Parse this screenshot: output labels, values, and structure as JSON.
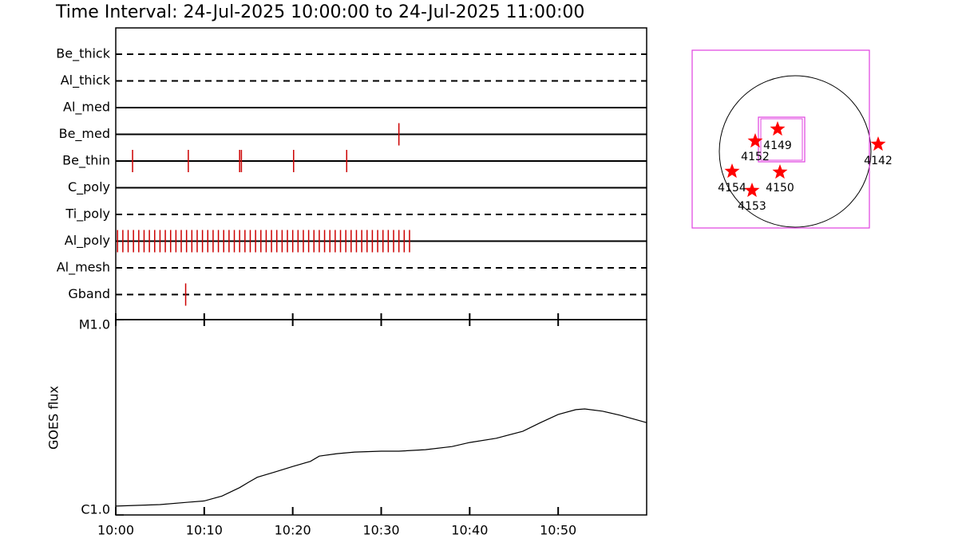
{
  "chart_data": [
    {
      "type": "timeline",
      "title": "Time Interval: 24-Jul-2025 10:00:00 to 24-Jul-2025 11:00:00",
      "categories": [
        "Be_thick",
        "Al_thick",
        "Al_med",
        "Be_med",
        "Be_thin",
        "C_poly",
        "Ti_poly",
        "Al_poly",
        "Al_mesh",
        "Gband"
      ],
      "line_styles": [
        "dashed",
        "dashed",
        "solid",
        "solid",
        "solid",
        "solid",
        "dashed",
        "solid",
        "dashed",
        "dashed"
      ],
      "events": [
        [],
        [],
        [],
        [
          32.0
        ],
        [
          1.9,
          8.2,
          14.0,
          14.2,
          20.1,
          26.1
        ],
        [],
        [],
        [
          0.2,
          0.8,
          1.4,
          2,
          2.6,
          3.2,
          3.8,
          4.4,
          5,
          5.6,
          6.2,
          6.8,
          7.4,
          8,
          8.6,
          9.2,
          9.8,
          10.4,
          11,
          11.6,
          12.2,
          12.8,
          13.4,
          14,
          14.6,
          15.2,
          15.8,
          16.4,
          17,
          17.6,
          18.2,
          18.8,
          19.4,
          20,
          20.6,
          21.2,
          21.8,
          22.4,
          23,
          23.6,
          24.2,
          24.8,
          25.4,
          26,
          26.6,
          27.2,
          27.8,
          28.4,
          29,
          29.6,
          30.2,
          30.8,
          31.4,
          32,
          32.6,
          33.2
        ],
        [],
        [
          7.9
        ]
      ],
      "event_color": "#cc0000",
      "xlim": [
        0,
        60
      ],
      "xticks": [
        0,
        10,
        20,
        30,
        40,
        50
      ]
    },
    {
      "type": "line",
      "y_label": "GOES flux",
      "log_scale": true,
      "color": "#000000",
      "x": [
        0,
        5,
        8,
        10,
        12,
        14,
        15,
        16,
        18,
        20,
        22,
        23,
        25,
        27,
        30,
        32,
        35,
        38,
        40,
        43,
        46,
        48,
        50,
        52,
        53,
        55,
        57,
        60
      ],
      "values": [
        1.11e-06,
        1.13e-06,
        1.16e-06,
        1.18e-06,
        1.25e-06,
        1.38e-06,
        1.47e-06,
        1.56e-06,
        1.66e-06,
        1.77e-06,
        1.88e-06,
        2e-06,
        2.06e-06,
        2.1e-06,
        2.12e-06,
        2.12e-06,
        2.16e-06,
        2.24e-06,
        2.35e-06,
        2.47e-06,
        2.68e-06,
        2.97e-06,
        3.27e-06,
        3.46e-06,
        3.49e-06,
        3.4e-06,
        3.24e-06,
        2.97e-06
      ],
      "xlim": [
        0,
        60
      ],
      "xticks": [
        {
          "value": 0,
          "label": "10:00"
        },
        {
          "value": 10,
          "label": "10:10"
        },
        {
          "value": 20,
          "label": "10:20"
        },
        {
          "value": 30,
          "label": "10:30"
        },
        {
          "value": 40,
          "label": "10:40"
        },
        {
          "value": 50,
          "label": "10:50"
        }
      ],
      "ylim": [
        1e-06,
        1e-05
      ],
      "yticks": [
        {
          "value": 1e-06,
          "label": "C1.0"
        },
        {
          "value": 1e-05,
          "label": "M1.0"
        }
      ]
    }
  ],
  "map": {
    "regions": [
      "4149",
      "4152",
      "4142",
      "4154",
      "4150",
      "4153"
    ],
    "star_color": "#ff0000",
    "box_color": "#e040e0"
  }
}
